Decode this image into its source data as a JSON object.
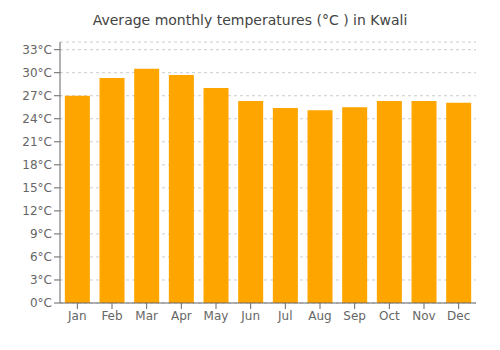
{
  "chart_data": {
    "type": "bar",
    "title": "Average monthly temperatures (°C ) in Kwali",
    "categories": [
      "Jan",
      "Feb",
      "Mar",
      "Apr",
      "May",
      "Jun",
      "Jul",
      "Aug",
      "Sep",
      "Oct",
      "Nov",
      "Dec"
    ],
    "values": [
      27.0,
      29.3,
      30.5,
      29.7,
      28.0,
      26.3,
      25.4,
      25.1,
      25.5,
      26.3,
      26.3,
      26.1
    ],
    "color": "#FFA500",
    "ylim": [
      0,
      34
    ],
    "yticks": [
      {
        "value": 0,
        "label": "0°C"
      },
      {
        "value": 3,
        "label": "3°C"
      },
      {
        "value": 6,
        "label": "6°C"
      },
      {
        "value": 9,
        "label": "9°C"
      },
      {
        "value": 12,
        "label": "12°C"
      },
      {
        "value": 15,
        "label": "15°C"
      },
      {
        "value": 18,
        "label": "18°C"
      },
      {
        "value": 21,
        "label": "21°C"
      },
      {
        "value": 24,
        "label": "24°C"
      },
      {
        "value": 27,
        "label": "27°C"
      },
      {
        "value": 30,
        "label": "30°C"
      },
      {
        "value": 33,
        "label": "33°C"
      }
    ],
    "grid": true
  }
}
